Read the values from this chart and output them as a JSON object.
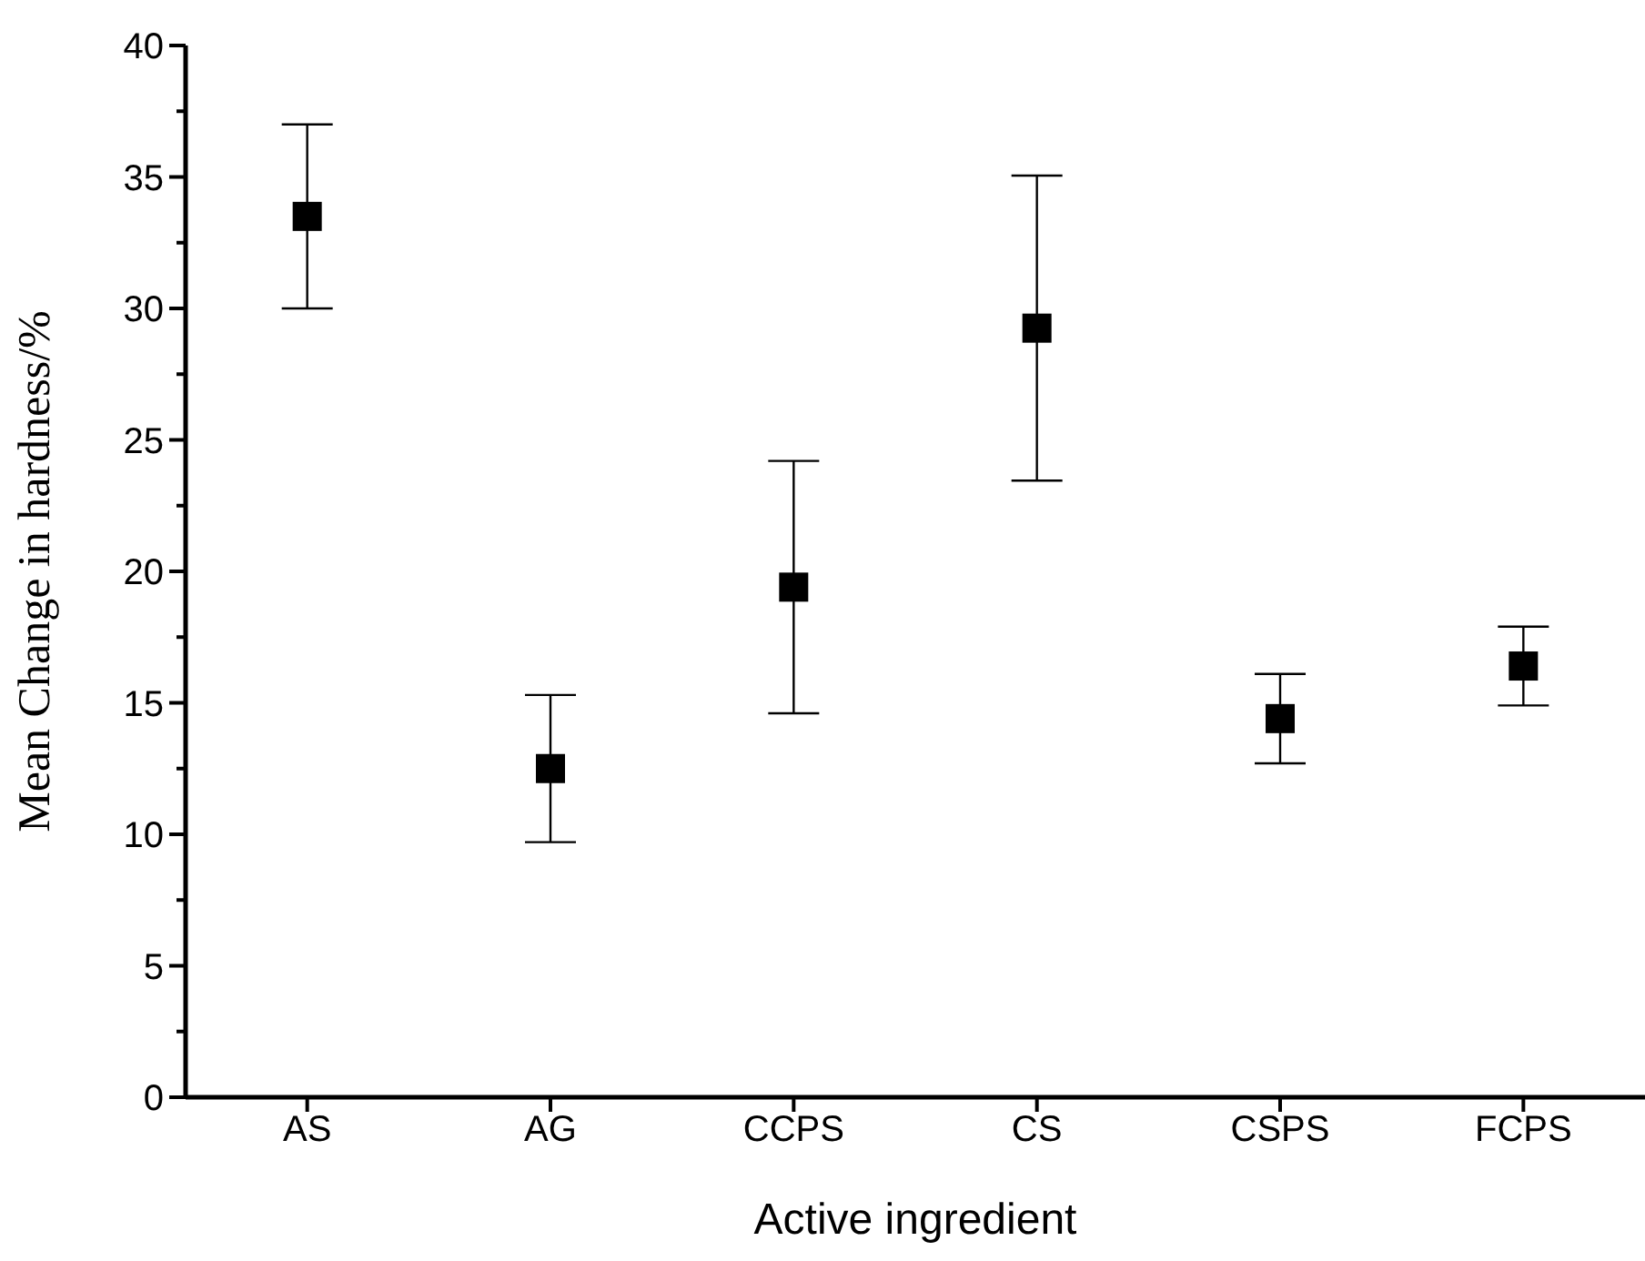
{
  "chart_data": {
    "type": "scatter",
    "xlabel": "Active ingredient",
    "ylabel": "Mean Change in hardness/%",
    "categories": [
      "AS",
      "AG",
      "CCPS",
      "CS",
      "CSPS",
      "FCPS"
    ],
    "series": [
      {
        "color": "#000000",
        "values": [
          33.5,
          12.5,
          19.4,
          29.25,
          14.4,
          16.4
        ],
        "errors": [
          3.5,
          2.8,
          4.8,
          5.8,
          1.7,
          1.5
        ]
      }
    ],
    "marker": "square",
    "grid": false,
    "legend": false,
    "ylim": [
      0,
      40
    ],
    "yticks": [
      0,
      {
        "value": 2.5,
        "label": null
      },
      5,
      {
        "value": 7.5,
        "label": null
      },
      10,
      {
        "value": 12.5,
        "label": null
      },
      15,
      {
        "value": 17.5,
        "label": null
      },
      20,
      {
        "value": 22.5,
        "label": null
      },
      25,
      {
        "value": 27.5,
        "label": null
      },
      30,
      {
        "value": 32.5,
        "label": null
      },
      35,
      {
        "value": 37.5,
        "label": null
      },
      40
    ]
  }
}
